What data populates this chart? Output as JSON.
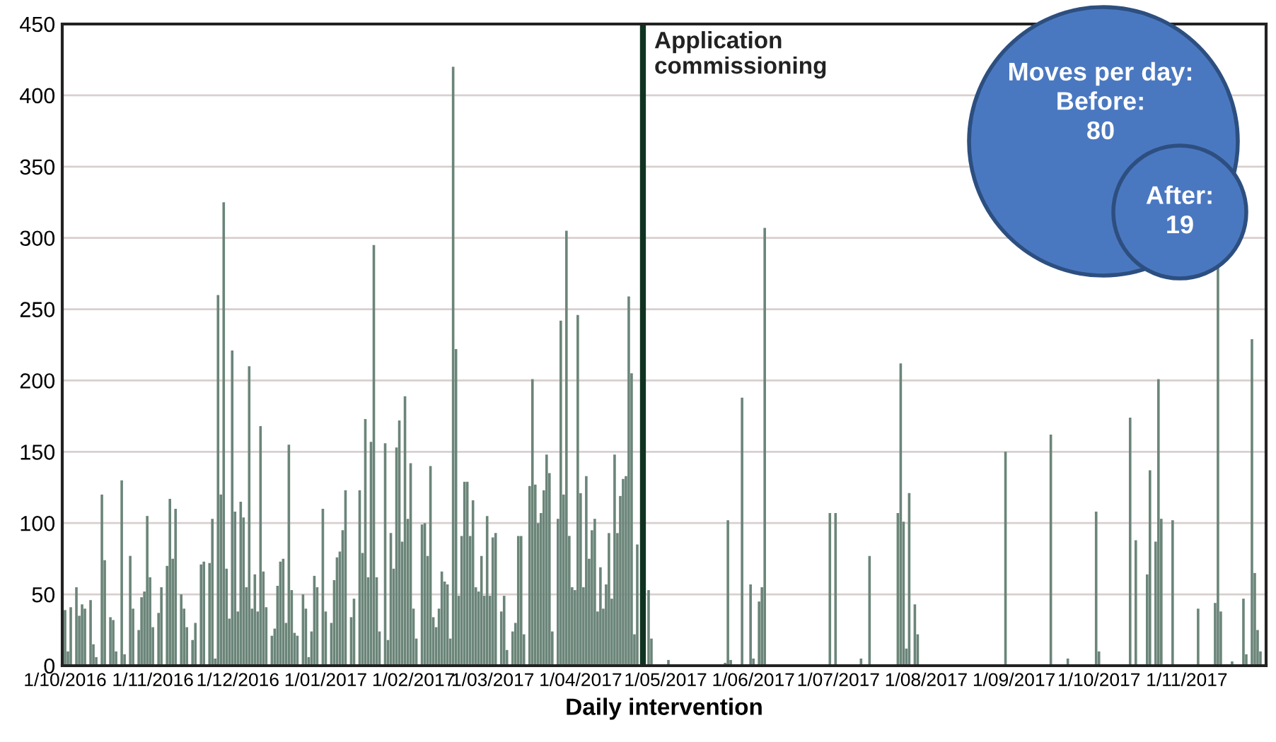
{
  "chart_data": {
    "type": "bar",
    "xlabel": "Daily intervention",
    "color": "#6b8579",
    "grid": "y",
    "x": [
      "2016-10-01",
      "2016-10-02",
      "2016-10-03",
      "2016-10-05",
      "2016-10-06",
      "2016-10-07",
      "2016-10-08",
      "2016-10-10",
      "2016-10-11",
      "2016-10-12",
      "2016-10-14",
      "2016-10-15",
      "2016-10-17",
      "2016-10-18",
      "2016-10-19",
      "2016-10-21",
      "2016-10-22",
      "2016-10-24",
      "2016-10-25",
      "2016-10-27",
      "2016-10-28",
      "2016-10-29",
      "2016-10-30",
      "2016-10-31",
      "2016-11-01",
      "2016-11-03",
      "2016-11-04",
      "2016-11-06",
      "2016-11-07",
      "2016-11-08",
      "2016-11-09",
      "2016-11-11",
      "2016-11-12",
      "2016-11-13",
      "2016-11-15",
      "2016-11-16",
      "2016-11-18",
      "2016-11-19",
      "2016-11-21",
      "2016-11-22",
      "2016-11-23",
      "2016-11-24",
      "2016-11-25",
      "2016-11-26",
      "2016-11-27",
      "2016-11-28",
      "2016-11-29",
      "2016-11-30",
      "2016-12-01",
      "2016-12-02",
      "2016-12-03",
      "2016-12-04",
      "2016-12-05",
      "2016-12-06",
      "2016-12-07",
      "2016-12-08",
      "2016-12-09",
      "2016-12-10",
      "2016-12-11",
      "2016-12-13",
      "2016-12-14",
      "2016-12-15",
      "2016-12-16",
      "2016-12-17",
      "2016-12-18",
      "2016-12-19",
      "2016-12-20",
      "2016-12-21",
      "2016-12-22",
      "2016-12-24",
      "2016-12-25",
      "2016-12-26",
      "2016-12-27",
      "2016-12-28",
      "2016-12-29",
      "2016-12-31",
      "2017-01-01",
      "2017-01-03",
      "2017-01-04",
      "2017-01-05",
      "2017-01-06",
      "2017-01-07",
      "2017-01-08",
      "2017-01-10",
      "2017-01-11",
      "2017-01-13",
      "2017-01-14",
      "2017-01-15",
      "2017-01-16",
      "2017-01-17",
      "2017-01-18",
      "2017-01-19",
      "2017-01-20",
      "2017-01-22",
      "2017-01-23",
      "2017-01-24",
      "2017-01-25",
      "2017-01-26",
      "2017-01-27",
      "2017-01-28",
      "2017-01-29",
      "2017-01-30",
      "2017-01-31",
      "2017-02-01",
      "2017-02-02",
      "2017-02-04",
      "2017-02-05",
      "2017-02-06",
      "2017-02-07",
      "2017-02-08",
      "2017-02-09",
      "2017-02-10",
      "2017-02-11",
      "2017-02-12",
      "2017-02-13",
      "2017-02-14",
      "2017-02-15",
      "2017-02-16",
      "2017-02-17",
      "2017-02-18",
      "2017-02-19",
      "2017-02-20",
      "2017-02-21",
      "2017-02-22",
      "2017-02-23",
      "2017-02-24",
      "2017-02-25",
      "2017-02-26",
      "2017-02-27",
      "2017-02-28",
      "2017-03-01",
      "2017-03-02",
      "2017-03-04",
      "2017-03-05",
      "2017-03-06",
      "2017-03-08",
      "2017-03-09",
      "2017-03-10",
      "2017-03-11",
      "2017-03-12",
      "2017-03-14",
      "2017-03-15",
      "2017-03-16",
      "2017-03-17",
      "2017-03-18",
      "2017-03-19",
      "2017-03-20",
      "2017-03-21",
      "2017-03-22",
      "2017-03-24",
      "2017-03-25",
      "2017-03-26",
      "2017-03-27",
      "2017-03-28",
      "2017-03-29",
      "2017-03-30",
      "2017-03-31",
      "2017-04-01",
      "2017-04-02",
      "2017-04-03",
      "2017-04-04",
      "2017-04-05",
      "2017-04-06",
      "2017-04-07",
      "2017-04-08",
      "2017-04-09",
      "2017-04-10",
      "2017-04-11",
      "2017-04-12",
      "2017-04-13",
      "2017-04-14",
      "2017-04-15",
      "2017-04-16",
      "2017-04-17",
      "2017-04-18",
      "2017-04-19",
      "2017-04-20",
      "2017-04-21",
      "2017-04-25",
      "2017-04-26",
      "2017-05-02",
      "2017-05-22",
      "2017-05-23",
      "2017-05-24",
      "2017-05-28",
      "2017-05-31",
      "2017-06-01",
      "2017-06-03",
      "2017-06-04",
      "2017-06-05",
      "2017-06-28",
      "2017-06-30",
      "2017-07-09",
      "2017-07-12",
      "2017-07-22",
      "2017-07-23",
      "2017-07-24",
      "2017-07-25",
      "2017-07-26",
      "2017-07-28",
      "2017-07-29",
      "2017-08-29",
      "2017-09-14",
      "2017-09-20",
      "2017-09-30",
      "2017-10-01",
      "2017-10-12",
      "2017-10-14",
      "2017-10-18",
      "2017-10-19",
      "2017-10-21",
      "2017-10-22",
      "2017-10-23",
      "2017-10-27",
      "2017-11-05",
      "2017-11-11",
      "2017-11-12",
      "2017-11-13",
      "2017-11-17",
      "2017-11-21",
      "2017-11-22",
      "2017-11-24",
      "2017-11-25",
      "2017-11-26",
      "2017-11-27"
    ],
    "values": [
      39,
      10,
      41,
      55,
      35,
      43,
      40,
      46,
      15,
      6,
      120,
      74,
      34,
      32,
      10,
      130,
      8,
      77,
      40,
      25,
      48,
      52,
      105,
      62,
      27,
      37,
      55,
      70,
      117,
      75,
      110,
      50,
      40,
      27,
      18,
      30,
      71,
      73,
      72,
      103,
      5,
      260,
      120,
      325,
      68,
      33,
      221,
      108,
      38,
      115,
      104,
      55,
      210,
      40,
      64,
      38,
      168,
      66,
      41,
      21,
      26,
      56,
      73,
      75,
      30,
      155,
      53,
      23,
      21,
      50,
      40,
      6,
      24,
      63,
      55,
      110,
      38,
      30,
      60,
      76,
      80,
      95,
      123,
      34,
      47,
      123,
      79,
      173,
      62,
      157,
      295,
      62,
      24,
      156,
      18,
      93,
      68,
      153,
      172,
      87,
      189,
      103,
      142,
      40,
      19,
      99,
      100,
      77,
      140,
      34,
      27,
      40,
      66,
      59,
      57,
      19,
      420,
      222,
      49,
      91,
      129,
      129,
      91,
      116,
      55,
      52,
      77,
      49,
      105,
      49,
      90,
      93,
      38,
      49,
      11,
      24,
      30,
      91,
      91,
      22,
      126,
      201,
      127,
      100,
      107,
      123,
      148,
      135,
      24,
      103,
      242,
      120,
      305,
      91,
      55,
      53,
      246,
      121,
      55,
      133,
      75,
      95,
      103,
      38,
      69,
      40,
      57,
      93,
      47,
      148,
      93,
      119,
      131,
      133,
      259,
      205,
      22,
      85,
      53,
      19,
      4,
      2,
      102,
      4,
      188,
      57,
      5,
      45,
      55,
      307,
      107,
      107,
      5,
      77,
      107,
      212,
      101,
      12,
      121,
      43,
      22,
      150,
      162,
      5,
      108,
      10,
      174,
      88,
      64,
      137,
      87,
      201,
      103,
      102,
      40,
      44,
      280,
      38,
      3,
      47,
      8,
      229,
      65,
      25,
      10
    ],
    "xlim": [
      "2016-09-30",
      "2017-11-29"
    ],
    "xticks": [
      {
        "value": "2016-10-01",
        "label": "1/10/2016"
      },
      {
        "value": "2016-11-01",
        "label": "1/11/2016"
      },
      {
        "value": "2016-12-01",
        "label": "1/12/2016"
      },
      {
        "value": "2017-01-01",
        "label": "1/01/2017"
      },
      {
        "value": "2017-02-01",
        "label": "1/02/2017"
      },
      {
        "value": "2017-03-01",
        "label": "1/03/2017"
      },
      {
        "value": "2017-04-01",
        "label": "1/04/2017"
      },
      {
        "value": "2017-05-01",
        "label": "1/05/2017"
      },
      {
        "value": "2017-06-01",
        "label": "1/06/2017"
      },
      {
        "value": "2017-07-01",
        "label": "1/07/2017"
      },
      {
        "value": "2017-08-01",
        "label": "1/08/2017"
      },
      {
        "value": "2017-09-01",
        "label": "1/09/2017"
      },
      {
        "value": "2017-10-01",
        "label": "1/10/2017"
      },
      {
        "value": "2017-11-01",
        "label": "1/11/2017"
      }
    ],
    "ylim": [
      0,
      450
    ],
    "yticks": [
      0,
      50,
      100,
      150,
      200,
      250,
      300,
      350,
      400,
      450
    ],
    "ref_lines": [
      {
        "axis": "x",
        "value": "2017-04-23",
        "label": "Application\ncommissioning",
        "color": "#0f3320"
      }
    ],
    "annotations": [
      "Moves per day:\nBefore:\n80",
      "After:\n19"
    ]
  }
}
